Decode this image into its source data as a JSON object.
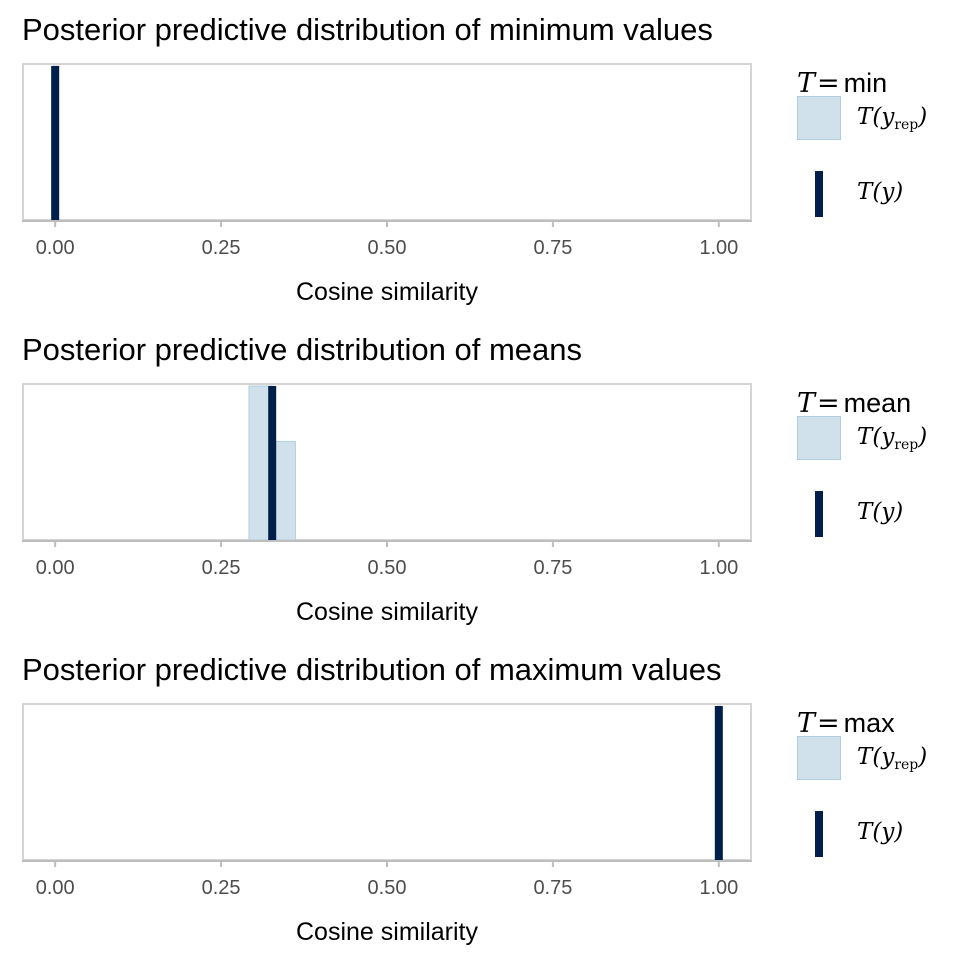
{
  "chart_data": [
    {
      "type": "histogram",
      "title": "Posterior predictive distribution of minimum values",
      "xlabel": "Cosine similarity",
      "xlim": [
        -0.05,
        1.05
      ],
      "xticks": [
        "0.00",
        "0.25",
        "0.50",
        "0.75",
        "1.00"
      ],
      "tick_values": [
        0,
        0.25,
        0.5,
        0.75,
        1.0
      ],
      "statistic": "min",
      "histogram_bins": [
        {
          "x0": -0.003,
          "x1": 0.003,
          "relative_height": 1.0
        }
      ],
      "observed_value": 0.0,
      "grid": false,
      "legend": {
        "position": "right",
        "title_T": "T",
        "title_eq": "=",
        "title_stat": "min",
        "yrep_main": "T(y",
        "yrep_sub": "rep",
        "yrep_close": ")",
        "y_label": "T(y)"
      }
    },
    {
      "type": "histogram",
      "title": "Posterior predictive distribution of means",
      "xlabel": "Cosine similarity",
      "xlim": [
        -0.05,
        1.05
      ],
      "xticks": [
        "0.00",
        "0.25",
        "0.50",
        "0.75",
        "1.00"
      ],
      "tick_values": [
        0,
        0.25,
        0.5,
        0.75,
        1.0
      ],
      "statistic": "mean",
      "histogram_bins": [
        {
          "x0": 0.292,
          "x1": 0.327,
          "relative_height": 1.0
        },
        {
          "x0": 0.327,
          "x1": 0.362,
          "relative_height": 0.64
        }
      ],
      "observed_value": 0.327,
      "grid": false,
      "legend": {
        "position": "right",
        "title_T": "T",
        "title_eq": "=",
        "title_stat": "mean",
        "yrep_main": "T(y",
        "yrep_sub": "rep",
        "yrep_close": ")",
        "y_label": "T(y)"
      }
    },
    {
      "type": "histogram",
      "title": "Posterior predictive distribution of maximum values",
      "xlabel": "Cosine similarity",
      "xlim": [
        -0.05,
        1.05
      ],
      "xticks": [
        "0.00",
        "0.25",
        "0.50",
        "0.75",
        "1.00"
      ],
      "tick_values": [
        0,
        0.25,
        0.5,
        0.75,
        1.0
      ],
      "statistic": "max",
      "histogram_bins": [
        {
          "x0": 0.997,
          "x1": 1.003,
          "relative_height": 1.0
        }
      ],
      "observed_value": 1.0,
      "grid": false,
      "legend": {
        "position": "right",
        "title_T": "T",
        "title_eq": "=",
        "title_stat": "max",
        "yrep_main": "T(y",
        "yrep_sub": "rep",
        "yrep_close": ")",
        "y_label": "T(y)"
      }
    }
  ],
  "colors": {
    "histogram_fill": "#d1e1ec",
    "histogram_border": "#b3cde0",
    "observed_line": "#011f4b",
    "panel_border": "#d4d4d4",
    "axis_line": "#bdbdbd",
    "tick_label": "#4d4d4d"
  }
}
